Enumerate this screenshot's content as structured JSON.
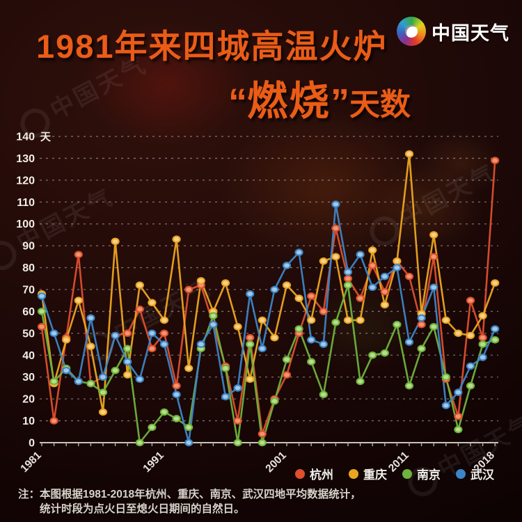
{
  "title": {
    "line1": "1981年来四城高温火炉",
    "quote_open": "“",
    "highlight": "燃烧",
    "quote_close": "”",
    "line2_rest": "天数"
  },
  "logo": {
    "text": "中国天气"
  },
  "watermark": {
    "text": "中国天气"
  },
  "chart_data": {
    "type": "line",
    "title": "1981年来四城高温火炉“燃烧”天数",
    "ylabel_unit": "天",
    "ylim": [
      0,
      140
    ],
    "ytick_step": 10,
    "grid": "dashed-horizontal",
    "legend_position": "bottom",
    "x": [
      1981,
      1982,
      1983,
      1984,
      1985,
      1986,
      1987,
      1988,
      1989,
      1990,
      1991,
      1992,
      1993,
      1994,
      1995,
      1996,
      1997,
      1998,
      1999,
      2000,
      2001,
      2002,
      2003,
      2004,
      2005,
      2006,
      2007,
      2008,
      2009,
      2010,
      2011,
      2012,
      2013,
      2014,
      2015,
      2016,
      2017,
      2018
    ],
    "xticks": [
      1981,
      1991,
      2001,
      2011,
      2018
    ],
    "series": [
      {
        "name": "杭州",
        "color": "#dd4f2e",
        "marker_fill": "#f0956d",
        "values": [
          53,
          10,
          48,
          86,
          27,
          30,
          49,
          50,
          61,
          43,
          50,
          26,
          70,
          72,
          54,
          35,
          10,
          48,
          4,
          20,
          31,
          50,
          67,
          60,
          98,
          75,
          66,
          81,
          69,
          83,
          76,
          54,
          85,
          29,
          12,
          65,
          48,
          129
        ]
      },
      {
        "name": "重庆",
        "color": "#eca51f",
        "marker_fill": "#f6d188",
        "values": [
          68,
          27,
          47,
          65,
          44,
          14,
          92,
          31,
          72,
          64,
          56,
          93,
          34,
          74,
          60,
          73,
          53,
          29,
          56,
          48,
          72,
          66,
          56,
          83,
          85,
          56,
          56,
          88,
          63,
          83,
          132,
          59,
          95,
          56,
          50,
          49,
          58,
          73
        ]
      },
      {
        "name": "南京",
        "color": "#6fb23c",
        "marker_fill": "#b5dd8a",
        "values": [
          60,
          28,
          34,
          28,
          27,
          23,
          33,
          43,
          0,
          7,
          14,
          11,
          7,
          43,
          58,
          34,
          0,
          45,
          0,
          19,
          38,
          52,
          37,
          22,
          55,
          72,
          28,
          40,
          41,
          54,
          26,
          43,
          53,
          30,
          6,
          26,
          45,
          47
        ]
      },
      {
        "name": "武汉",
        "color": "#3c85c6",
        "marker_fill": "#9ec9e8",
        "values": [
          67,
          50,
          33,
          28,
          57,
          30,
          49,
          37,
          29,
          50,
          45,
          22,
          0,
          45,
          54,
          21,
          25,
          68,
          43,
          70,
          81,
          87,
          47,
          45,
          109,
          78,
          86,
          71,
          76,
          80,
          46,
          57,
          71,
          17,
          23,
          35,
          39,
          52
        ]
      }
    ]
  },
  "footer": {
    "prefix": "注：",
    "line1": "本图根据1981-2018年杭州、重庆、南京、武汉四地平均数据统计，",
    "line2": "统计时段为点火日至熄火日期间的自然日。"
  }
}
